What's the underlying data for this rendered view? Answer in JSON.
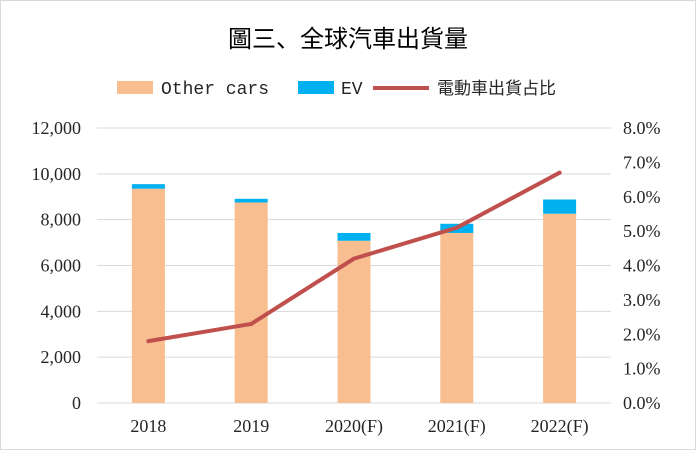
{
  "chart_data": {
    "type": "bar",
    "title": "圖三、全球汽車出貨量",
    "categories": [
      "2018",
      "2019",
      "2020(F)",
      "2021(F)",
      "2022(F)"
    ],
    "series": [
      {
        "name": "Other cars",
        "kind": "bar",
        "stack": "main",
        "axis": "left",
        "color": "#F8BE8F",
        "values": [
          9350,
          8750,
          7080,
          7420,
          8260
        ]
      },
      {
        "name": "EV",
        "kind": "bar",
        "stack": "main",
        "axis": "left",
        "color": "#00B0F0",
        "values": [
          200,
          160,
          340,
          400,
          620
        ]
      },
      {
        "name": "電動車出貨占比",
        "kind": "line",
        "axis": "right",
        "color": "#C0504D",
        "values": [
          1.8,
          2.3,
          4.2,
          5.1,
          6.7
        ]
      }
    ],
    "y_left": {
      "ylim": [
        0,
        12000
      ],
      "ticks": [
        "0",
        "2,000",
        "4,000",
        "6,000",
        "8,000",
        "10,000",
        "12,000"
      ]
    },
    "y_right": {
      "ylim": [
        0,
        8
      ],
      "ticks": [
        "0.0%",
        "1.0%",
        "2.0%",
        "3.0%",
        "4.0%",
        "5.0%",
        "6.0%",
        "7.0%",
        "8.0%"
      ]
    },
    "grid": "horizontal",
    "legend": "top"
  }
}
